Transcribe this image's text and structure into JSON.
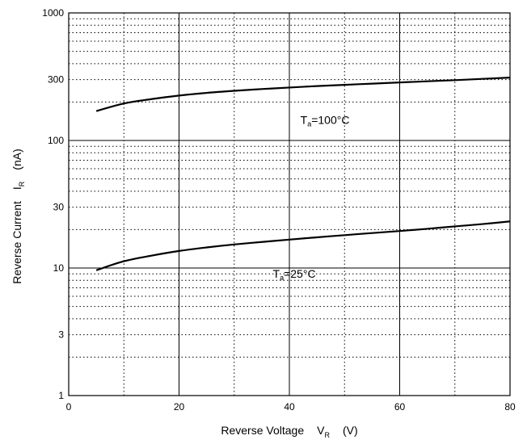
{
  "chart_data": {
    "type": "line",
    "title": "",
    "xlabel": {
      "main": "Reverse Voltage",
      "symbol": "V",
      "subscript": "R",
      "unit": "(V)"
    },
    "ylabel": {
      "main": "Reverse Current",
      "symbol": "I",
      "subscript": "R",
      "unit": "(nA)"
    },
    "xlim": [
      0,
      80
    ],
    "ylim": [
      1,
      1000
    ],
    "yscale": "log",
    "x_ticks": [
      0,
      20,
      40,
      60,
      80
    ],
    "x_tick_labels": [
      "0",
      "20",
      "40",
      "60",
      "80"
    ],
    "x_minor_grid": [
      10,
      30,
      50,
      70
    ],
    "y_ticks": [
      1,
      3,
      10,
      30,
      100,
      300,
      1000
    ],
    "y_tick_labels": [
      "1",
      "3",
      "10",
      "30",
      "100",
      "300",
      "1000"
    ],
    "y_major_grid": [
      10,
      100
    ],
    "grid": true,
    "series": [
      {
        "annotation": {
          "symbol": "T",
          "subscript": "a",
          "text": "=100°C"
        },
        "annotation_at": {
          "x": 42,
          "y": 145
        },
        "x": [
          5,
          10,
          15,
          20,
          25,
          30,
          35,
          40,
          45,
          50,
          55,
          60,
          65,
          70,
          75,
          80
        ],
        "y": [
          170,
          195,
          211,
          225,
          236,
          245,
          253,
          260,
          267,
          273,
          279,
          285,
          291,
          297,
          304,
          311
        ]
      },
      {
        "annotation": {
          "symbol": "T",
          "subscript": "a",
          "text": "=25°C"
        },
        "annotation_at": {
          "x": 37,
          "y": 9.0
        },
        "x": [
          5,
          10,
          15,
          20,
          25,
          30,
          35,
          40,
          45,
          50,
          55,
          60,
          65,
          70,
          75,
          80
        ],
        "y": [
          9.6,
          11.3,
          12.5,
          13.6,
          14.5,
          15.3,
          16.0,
          16.7,
          17.4,
          18.1,
          18.8,
          19.5,
          20.3,
          21.2,
          22.1,
          23.2
        ]
      }
    ]
  }
}
